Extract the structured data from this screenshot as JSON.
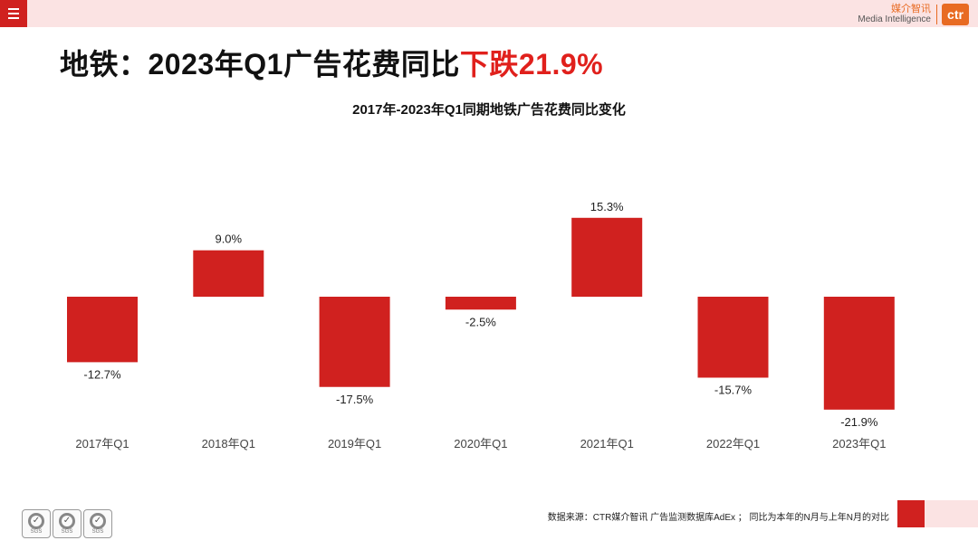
{
  "header": {
    "menu_icon": "hamburger-menu-icon",
    "logo_cn": "媒介智讯",
    "logo_en": "Media Intelligence",
    "logo_mark": "ctr"
  },
  "headline": {
    "prefix": "地铁：2023年Q1广告花费同比",
    "highlight": "下跌21.9%"
  },
  "chart_data": {
    "type": "bar",
    "title": "2017年-2023年Q1同期地铁广告花费同比变化",
    "categories": [
      "2017年Q1",
      "2018年Q1",
      "2019年Q1",
      "2020年Q1",
      "2021年Q1",
      "2022年Q1",
      "2023年Q1"
    ],
    "values": [
      -12.7,
      9.0,
      -17.5,
      -2.5,
      15.3,
      -15.7,
      -21.9
    ],
    "labels": [
      "-12.7%",
      "9.0%",
      "-17.5%",
      "-2.5%",
      "15.3%",
      "-15.7%",
      "-21.9%"
    ],
    "unit": "%",
    "xlabel": "",
    "ylabel": "",
    "grid": false,
    "bar_color": "#d0211f"
  },
  "footer": {
    "cert_label": "SGS",
    "source": "数据来源：CTR媒介智讯 广告监测数据库AdEx ； 同比为本年的N月与上年N月的对比"
  }
}
